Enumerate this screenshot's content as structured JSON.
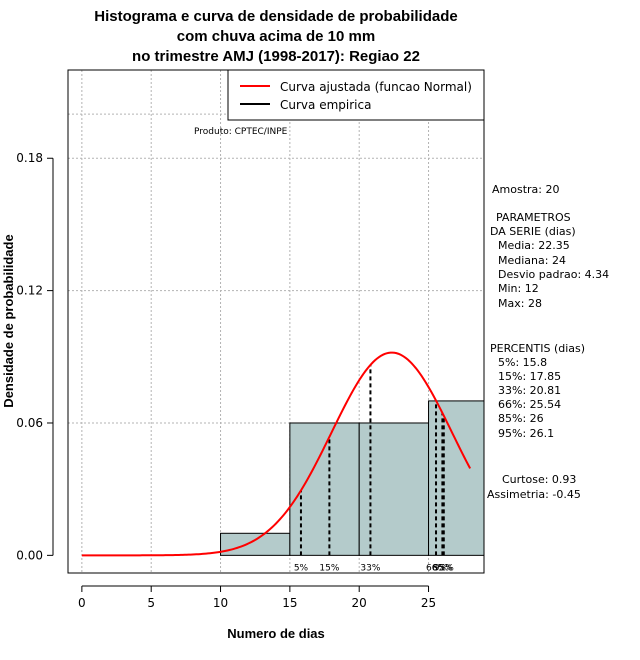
{
  "chart_data": {
    "type": "bar",
    "title_lines": [
      "Histograma e curva de densidade de probabilidade",
      "com chuva acima de 10 mm",
      "no trimestre AMJ (1998-2017): Regiao 22"
    ],
    "xlabel": "Numero de dias",
    "ylabel": "Densidade de probabilidade",
    "xlim": [
      -1,
      29
    ],
    "ylim": [
      -0.008,
      0.22
    ],
    "x_ticks": [
      0,
      5,
      10,
      15,
      20,
      25
    ],
    "x_tick_labels": [
      "0",
      "5",
      "10",
      "15",
      "20",
      "25"
    ],
    "y_ticks": [
      0.0,
      0.06,
      0.12,
      0.18
    ],
    "y_tick_labels": [
      "0.00",
      "0.06",
      "0.12",
      "0.18"
    ],
    "grid_x": [
      0,
      5,
      10,
      15,
      20,
      25
    ],
    "grid_y": [
      0.06,
      0.12,
      0.18,
      0.2
    ],
    "histogram": {
      "bins": [
        [
          10,
          15
        ],
        [
          15,
          20
        ],
        [
          20,
          25
        ],
        [
          25,
          29
        ]
      ],
      "density": [
        0.01,
        0.06,
        0.06,
        0.07
      ],
      "fill": "#b4cbcb"
    },
    "normal_curve": {
      "mean": 22.35,
      "sd": 4.34,
      "x_start": 0,
      "x_end": 28,
      "color": "#ff0000"
    },
    "percentile_lines": [
      {
        "x": 15.8,
        "label": "5%"
      },
      {
        "x": 17.85,
        "label": "15%"
      },
      {
        "x": 20.81,
        "label": "33%"
      },
      {
        "x": 25.54,
        "label": "66%"
      },
      {
        "x": 26,
        "label": "85%"
      },
      {
        "x": 26.1,
        "label": "95%"
      }
    ],
    "legend": {
      "position": "top-right",
      "entries": [
        {
          "label": "Curva ajustada (funcao Normal)",
          "color": "#ff0000"
        },
        {
          "label": "Curva empirica",
          "color": "#000000"
        }
      ]
    },
    "product_note": "Produto: CPTEC/INPE"
  },
  "stats_panel": {
    "sample": "Amostra: 20",
    "params_header_1": "PARAMETROS",
    "params_header_2": "DA SERIE (dias)",
    "media": "Media: 22.35",
    "mediana": "Mediana: 24",
    "desvio": "Desvio padrao: 4.34",
    "min": "Min: 12",
    "max": "Max: 28",
    "percentis_header": "PERCENTIS (dias)",
    "p5": "5%: 15.8",
    "p15": "15%: 17.85",
    "p33": "33%: 20.81",
    "p66": "66%: 25.54",
    "p85": "85%: 26",
    "p95": "95%: 26.1",
    "curtose": "Curtose: 0.93",
    "assimetria": "Assimetria: -0.45"
  }
}
